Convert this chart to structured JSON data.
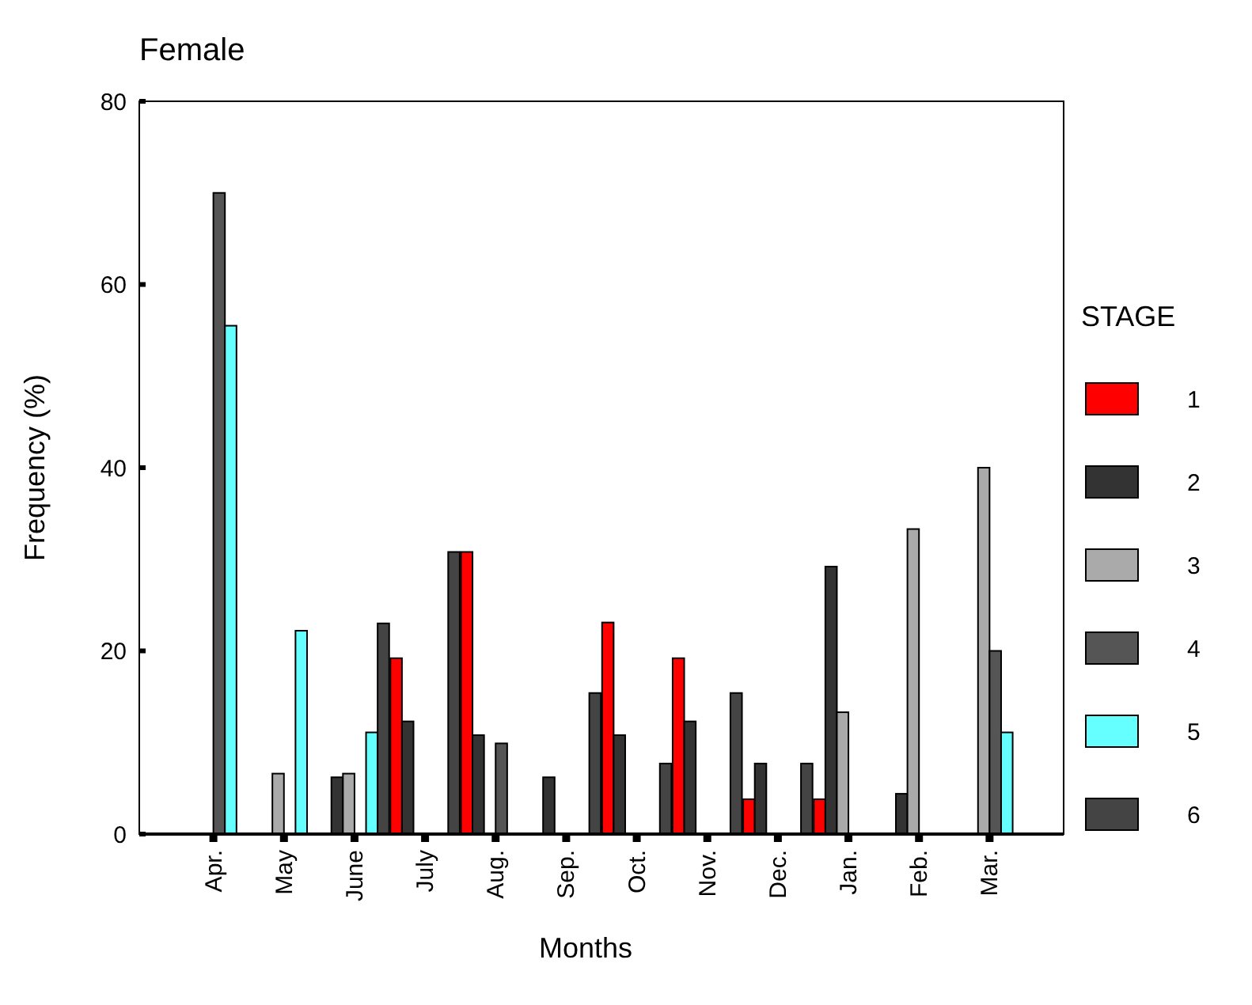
{
  "chart_data": {
    "type": "bar",
    "title": "Female",
    "xlabel": "Months",
    "ylabel": "Frequency (%)",
    "legend_title": "STAGE",
    "legend": "right",
    "categories": [
      "Apr.",
      "May",
      "June",
      "July",
      "Aug.",
      "Sep.",
      "Oct.",
      "Nov.",
      "Dec.",
      "Jan.",
      "Feb.",
      "Mar."
    ],
    "series": [
      {
        "name": "1",
        "color": "#ff0000",
        "values": [
          0,
          0,
          0,
          19.2,
          30.8,
          0,
          23.1,
          19.2,
          3.8,
          3.8,
          0,
          0
        ]
      },
      {
        "name": "2",
        "color": "#333333",
        "values": [
          0,
          0,
          6.2,
          12.3,
          10.8,
          6.2,
          10.8,
          12.3,
          7.7,
          29.2,
          4.4,
          0
        ]
      },
      {
        "name": "3",
        "color": "#aaaaaa",
        "values": [
          0,
          6.6,
          6.6,
          0,
          0,
          0,
          0,
          0,
          0,
          13.3,
          33.3,
          40
        ]
      },
      {
        "name": "4",
        "color": "#555555",
        "values": [
          70,
          0,
          0,
          0,
          9.9,
          0,
          0,
          0,
          0,
          0,
          0,
          20
        ]
      },
      {
        "name": "5",
        "color": "#66ffff",
        "values": [
          55.5,
          22.2,
          11.1,
          0,
          0,
          0,
          0,
          0,
          0,
          0,
          0,
          11.1
        ]
      },
      {
        "name": "6",
        "color": "#444444",
        "values": [
          0,
          0,
          23,
          30.8,
          0,
          15.4,
          7.7,
          15.4,
          7.7,
          0,
          0,
          0
        ]
      }
    ],
    "ylim": [
      0,
      80
    ],
    "yticks": [
      0,
      20,
      40,
      60,
      80
    ],
    "grid": false
  }
}
